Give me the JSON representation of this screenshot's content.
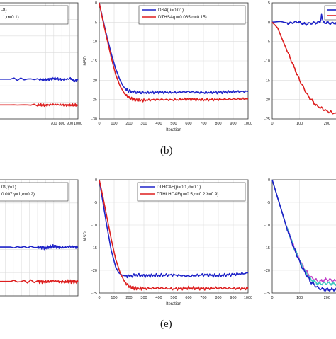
{
  "captions": {
    "top": "(b)",
    "bottom": "(e)"
  },
  "colors": {
    "blue": "#1f24c8",
    "red": "#dd1f1f",
    "magenta": "#c040c8",
    "cyan": "#40c8c0",
    "grid": "#dcdcdc"
  },
  "chart_data": [
    {
      "type": "line",
      "title": "",
      "xlabel": "",
      "ylabel": "",
      "xlim": [
        0,
        1000
      ],
      "ylim": [
        -30,
        5
      ],
      "xticks": [
        "",
        "700",
        "800",
        "900",
        "1000"
      ],
      "yticks": [],
      "grid": true,
      "legend_placement": "top-left",
      "series": [
        {
          "name": "-8)",
          "color": "#1f24c8",
          "x": [
            0,
            500,
            600,
            700,
            800,
            900,
            960,
            1000
          ],
          "y": [
            -18,
            -18,
            -18.2,
            -17.8,
            -18.1,
            -17.9,
            -18.6,
            -18.1
          ]
        },
        {
          "name": ".1,α=0.1)",
          "color": "#dd1f1f",
          "x": [
            0,
            500,
            600,
            700,
            800,
            900,
            1000
          ],
          "y": [
            -25.8,
            -25.8,
            -25.9,
            -25.7,
            -25.8,
            -25.9,
            -25.8
          ]
        }
      ]
    },
    {
      "type": "line",
      "title": "",
      "xlabel": "Iteration",
      "ylabel": "MSD",
      "xlim": [
        0,
        1000
      ],
      "ylim": [
        -30,
        0
      ],
      "xticks": [
        "0",
        "100",
        "200",
        "300",
        "400",
        "500",
        "600",
        "700",
        "800",
        "900",
        "1000"
      ],
      "yticks": [
        "0",
        "-5",
        "-10",
        "-15",
        "-20",
        "-25",
        "-30"
      ],
      "grid": true,
      "legend_placement": "top-right",
      "series": [
        {
          "name": "DSA(μ=0.01)",
          "color": "#1f24c8",
          "x": [
            0,
            20,
            50,
            80,
            110,
            140,
            160,
            180,
            200,
            250,
            300,
            400,
            500,
            600,
            700,
            800,
            900,
            1000
          ],
          "y": [
            0,
            -3.5,
            -8.5,
            -13,
            -17,
            -20,
            -21.5,
            -22.4,
            -22.8,
            -23.1,
            -23.2,
            -23.1,
            -23.2,
            -23.0,
            -23.2,
            -23.1,
            -23.0,
            -22.9
          ]
        },
        {
          "name": "DTHSA(μ=0.065,α=0.15)",
          "color": "#dd1f1f",
          "x": [
            0,
            20,
            50,
            80,
            110,
            140,
            170,
            200,
            230,
            260,
            300,
            400,
            500,
            600,
            700,
            800,
            900,
            1000
          ],
          "y": [
            0,
            -3.8,
            -9,
            -14,
            -18.5,
            -21.5,
            -23.5,
            -24.5,
            -25,
            -25.2,
            -25.2,
            -25.0,
            -25.1,
            -24.9,
            -25.1,
            -25.0,
            -24.9,
            -24.8
          ]
        }
      ]
    },
    {
      "type": "line",
      "title": "",
      "xlabel": "",
      "ylabel": "",
      "xlim": [
        0,
        300
      ],
      "ylim": [
        -25,
        5
      ],
      "xticks": [
        "0",
        "100",
        "200",
        "30"
      ],
      "yticks": [
        "5",
        "0",
        "-5",
        "-10",
        "-15",
        "-20",
        "-25"
      ],
      "grid": true,
      "legend_placement": "top-right",
      "series": [
        {
          "name": "",
          "color": "#1f24c8",
          "x": [
            0,
            30,
            60,
            90,
            120,
            150,
            175,
            180,
            185,
            210,
            240,
            260,
            270,
            300
          ],
          "y": [
            0,
            0.2,
            -0.3,
            0.1,
            -0.5,
            -0.2,
            0,
            2,
            0,
            -0.3,
            -0.2,
            2.3,
            0,
            -0.1
          ]
        },
        {
          "name": "",
          "color": "#dd1f1f",
          "x": [
            0,
            20,
            40,
            70,
            100,
            130,
            160,
            200,
            240,
            270,
            300
          ],
          "y": [
            0,
            -1.5,
            -5,
            -10,
            -15,
            -19,
            -21.5,
            -23,
            -23.8,
            -24.1,
            -24.2
          ]
        }
      ]
    },
    {
      "type": "line",
      "title": "",
      "xlabel": "",
      "ylabel": "",
      "xlim": [
        0,
        1000
      ],
      "ylim": [
        -25,
        0
      ],
      "xticks": [
        "0",
        "100",
        "200",
        "300",
        "400",
        "500",
        "600",
        "700",
        "800",
        "900",
        "1000"
      ],
      "yticks": [],
      "grid": true,
      "legend_placement": "top-left",
      "series": [
        {
          "name": "09,γ=1)",
          "color": "#1f24c8",
          "x": [
            0,
            500,
            600,
            700,
            800,
            900,
            1000
          ],
          "y": [
            -14.5,
            -14.5,
            -14.7,
            -14.3,
            -14.6,
            -14.4,
            -14.5
          ]
        },
        {
          "name": "0.007,γ=1,α=0.2)",
          "color": "#dd1f1f",
          "x": [
            0,
            500,
            600,
            700,
            800,
            900,
            1000
          ],
          "y": [
            -21.9,
            -21.9,
            -22.0,
            -21.8,
            -22.0,
            -21.9,
            -22.0
          ]
        }
      ]
    },
    {
      "type": "line",
      "title": "",
      "xlabel": "Iteration",
      "ylabel": "MSD",
      "xlim": [
        0,
        1000
      ],
      "ylim": [
        -25,
        0
      ],
      "xticks": [
        "0",
        "100",
        "200",
        "300",
        "400",
        "500",
        "600",
        "700",
        "800",
        "900",
        "1000"
      ],
      "yticks": [
        "0",
        "-5",
        "-10",
        "-15",
        "-20",
        "-25"
      ],
      "grid": true,
      "legend_placement": "top-right",
      "series": [
        {
          "name": "DLHCAF(μ=0.1,α=0.1)",
          "color": "#1f24c8",
          "x": [
            0,
            20,
            50,
            80,
            110,
            130,
            150,
            170,
            200,
            250,
            300,
            400,
            500,
            600,
            700,
            800,
            900,
            1000
          ],
          "y": [
            0,
            -4,
            -10,
            -15.5,
            -19.2,
            -20.5,
            -21,
            -21.2,
            -21.3,
            -21.0,
            -21.2,
            -21.1,
            -21.0,
            -21.3,
            -21.0,
            -21.2,
            -20.9,
            -20.6
          ]
        },
        {
          "name": "DTHLHCAF(μ=0.5,α=0.2,λ=0.9)",
          "color": "#dd1f1f",
          "x": [
            0,
            20,
            50,
            80,
            110,
            140,
            170,
            200,
            230,
            260,
            300,
            400,
            500,
            600,
            700,
            800,
            900,
            1000
          ],
          "y": [
            0,
            -3,
            -8,
            -13,
            -17.5,
            -20.5,
            -22.5,
            -23.5,
            -23.9,
            -24.0,
            -24.0,
            -23.9,
            -24.1,
            -23.9,
            -24.0,
            -23.9,
            -24.0,
            -24.0
          ]
        }
      ]
    },
    {
      "type": "line",
      "title": "",
      "xlabel": "",
      "ylabel": "",
      "xlim": [
        0,
        300
      ],
      "ylim": [
        -25,
        0
      ],
      "xticks": [
        "0",
        "100",
        "200",
        "30"
      ],
      "yticks": [
        "0",
        "-5",
        "-10",
        "-15",
        "-20",
        "-25"
      ],
      "grid": true,
      "legend_placement": "none",
      "series": [
        {
          "name": "",
          "color": "#c040c8",
          "x": [
            0,
            20,
            50,
            80,
            110,
            140,
            170,
            200,
            230,
            260,
            300
          ],
          "y": [
            0,
            -4,
            -10,
            -15,
            -19,
            -21.5,
            -22.5,
            -22.0,
            -22.3,
            -22.1,
            -22.2
          ]
        },
        {
          "name": "",
          "color": "#40c8c0",
          "x": [
            0,
            20,
            50,
            80,
            110,
            140,
            170,
            200,
            230,
            260,
            300
          ],
          "y": [
            0,
            -4,
            -10,
            -15,
            -19.2,
            -22,
            -23,
            -22.8,
            -23.0,
            -22.9,
            -23.0
          ]
        },
        {
          "name": "",
          "color": "#1f24c8",
          "x": [
            0,
            20,
            50,
            80,
            110,
            140,
            170,
            200,
            230,
            260,
            300
          ],
          "y": [
            0,
            -4,
            -10,
            -15.2,
            -19.5,
            -22.5,
            -24,
            -24.3,
            -24.2,
            -24.4,
            -24.3
          ]
        }
      ]
    }
  ]
}
